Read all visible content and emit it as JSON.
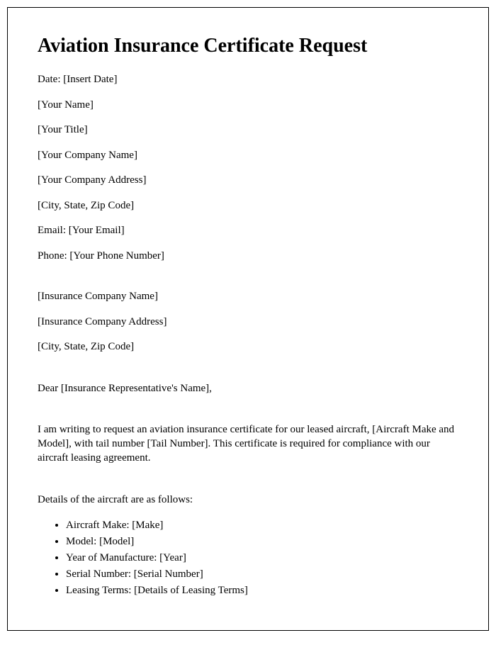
{
  "title": "Aviation Insurance Certificate Request",
  "sender": {
    "date": "Date: [Insert Date]",
    "name": "[Your Name]",
    "title": "[Your Title]",
    "company": "[Your Company Name]",
    "address": "[Your Company Address]",
    "city": "[City, State, Zip Code]",
    "email": "Email: [Your Email]",
    "phone": "Phone: [Your Phone Number]"
  },
  "recipient": {
    "company": "[Insurance Company Name]",
    "address": "[Insurance Company Address]",
    "city": "[City, State, Zip Code]"
  },
  "salutation": "Dear [Insurance Representative's Name],",
  "body": {
    "intro": "I am writing to request an aviation insurance certificate for our leased aircraft, [Aircraft Make and Model], with tail number [Tail Number]. This certificate is required for compliance with our aircraft leasing agreement.",
    "details_heading": "Details of the aircraft are as follows:",
    "details": {
      "make": "Aircraft Make: [Make]",
      "model": "Model: [Model]",
      "year": "Year of Manufacture: [Year]",
      "serial": "Serial Number: [Serial Number]",
      "leasing": "Leasing Terms: [Details of Leasing Terms]"
    }
  }
}
